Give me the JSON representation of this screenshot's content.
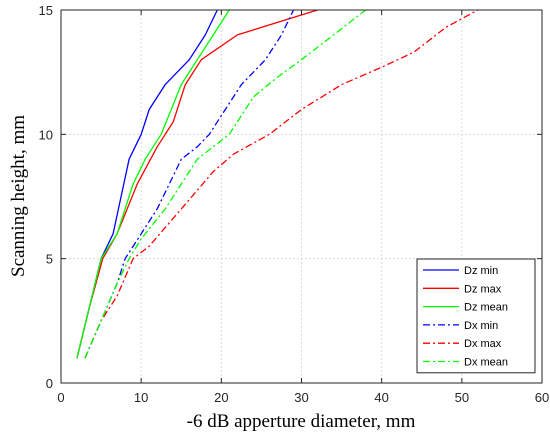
{
  "chart_data": {
    "type": "line",
    "title": "",
    "xlabel": "-6 dB apperture diameter, mm",
    "ylabel": "Scanning height, mm",
    "xlim": [
      0,
      60
    ],
    "ylim": [
      0,
      15
    ],
    "xticks": [
      "0",
      "10",
      "20",
      "30",
      "40",
      "50",
      "60"
    ],
    "yticks": [
      "0",
      "5",
      "10",
      "15"
    ],
    "grid": true,
    "legend_position": "bottom-right",
    "series": [
      {
        "name": "Dz min",
        "color": "#0000ff",
        "dash": "solid",
        "x": [
          2,
          3.5,
          5,
          6.5,
          8.5,
          10,
          11,
          13,
          16,
          18,
          19.5
        ],
        "y": [
          1,
          3,
          5,
          6,
          9,
          10,
          11,
          12,
          13,
          14,
          15
        ]
      },
      {
        "name": "Dz max",
        "color": "#ff0000",
        "dash": "solid",
        "x": [
          2,
          3.5,
          5.2,
          7,
          9.5,
          12,
          14,
          15.5,
          17.5,
          22,
          27,
          32
        ],
        "y": [
          1,
          3,
          5,
          6,
          8,
          9.5,
          10.5,
          12,
          13,
          14,
          14.5,
          15
        ]
      },
      {
        "name": "Dz mean",
        "color": "#00ff00",
        "dash": "solid",
        "x": [
          2,
          3.5,
          5,
          7,
          9,
          10.5,
          12.5,
          15,
          17,
          19,
          21
        ],
        "y": [
          1,
          3,
          5,
          6,
          8,
          9,
          10,
          12,
          13,
          14,
          15
        ]
      },
      {
        "name": "Dx min",
        "color": "#0000ff",
        "dash": "dashdot",
        "x": [
          3,
          5,
          7,
          8,
          10,
          12,
          15,
          17,
          18.5,
          20.5,
          22.5,
          25.5,
          27.5,
          29
        ],
        "y": [
          1,
          2.5,
          4,
          5,
          6,
          7,
          9,
          9.5,
          10,
          11,
          12,
          13,
          14,
          15
        ]
      },
      {
        "name": "Dx max",
        "color": "#ff0000",
        "dash": "dashdot",
        "x": [
          3,
          5,
          7,
          9,
          11,
          15,
          19,
          21.5,
          26,
          30,
          35,
          40,
          44,
          48,
          52
        ],
        "y": [
          1,
          2.5,
          3.5,
          5,
          5.5,
          7,
          8.5,
          9.2,
          10,
          11,
          12,
          12.7,
          13.3,
          14.3,
          15
        ]
      },
      {
        "name": "Dx mean",
        "color": "#00ff00",
        "dash": "dashdot",
        "x": [
          3,
          5,
          7,
          8.5,
          10,
          13,
          17,
          21,
          24,
          27,
          30,
          34,
          38
        ],
        "y": [
          1,
          2.5,
          4,
          5,
          5.8,
          7,
          9,
          10,
          11.5,
          12.3,
          13,
          14,
          15
        ]
      }
    ]
  }
}
